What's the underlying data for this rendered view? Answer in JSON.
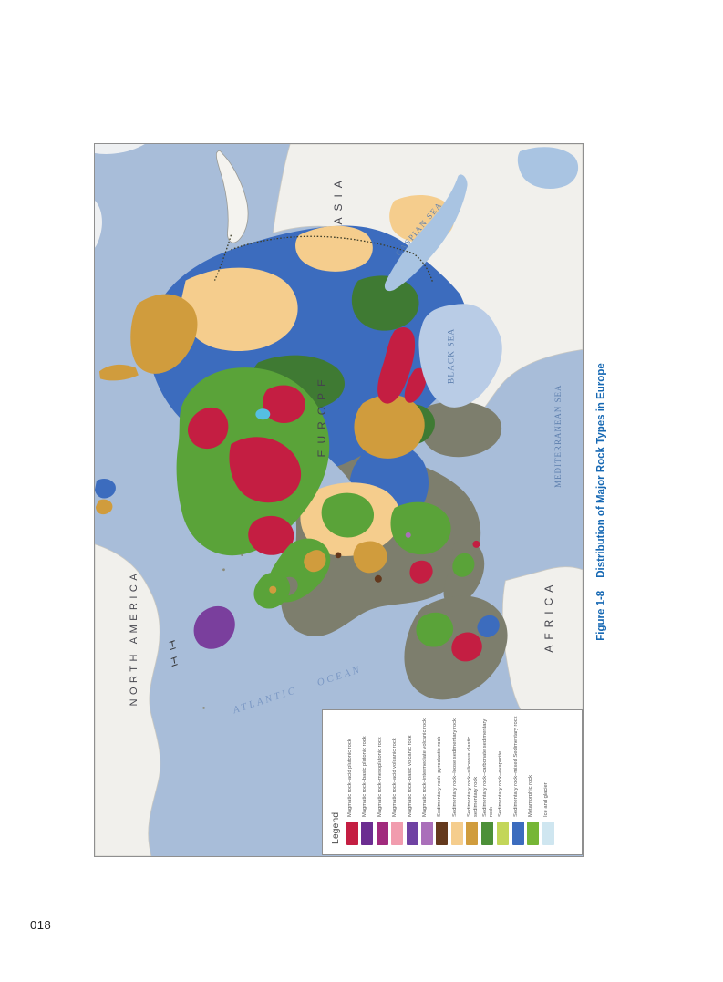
{
  "page": {
    "number": "018"
  },
  "figure": {
    "label": "Figure 1-8",
    "title": "Distribution of Major Rock Types in Europe",
    "title_color": "#1668b3"
  },
  "map": {
    "labels": {
      "asia": "ASIA",
      "europe": "EUROPE",
      "africa": "AFRICA",
      "north_america": "NORTH AMERICA",
      "atlantic_ocean": "ATLANTIC OCEAN",
      "caspian_sea": "CASPIAN SEA",
      "black_sea": "BLACK SEA",
      "mediterranean_sea": "MEDITERRANEAN SEA"
    },
    "colors": {
      "ocean": "#a8bdd9",
      "inland_sea": "#b9cce6",
      "caspian_sea": "#a9c4e2",
      "land_neutral": "#f1f0ec",
      "continent_label": "#45454d",
      "sea_label": "#5d7fae"
    }
  },
  "legend": {
    "title": "Legend",
    "items": [
      {
        "label": "Magmatic rock–acid plutonic rock",
        "color": "#c41e42"
      },
      {
        "label": "Magmatic rock–basic plutonic rock",
        "color": "#6c2d91"
      },
      {
        "label": "Magmatic rock–mesoplutonic rock",
        "color": "#a12a7d"
      },
      {
        "label": "Magmatic rock–acid volcanic rock",
        "color": "#f19cae"
      },
      {
        "label": "Magmatic rock–basic volcanic rock",
        "color": "#6f42a3"
      },
      {
        "label": "Magmatic rock–intermediate volcanic rock",
        "color": "#aa6fba"
      },
      {
        "label": "Sedimentary rock–pyroclastic rock",
        "color": "#64391d"
      },
      {
        "label": "Sedimentary rock–loose sedimentary rock",
        "color": "#f5cd8d"
      },
      {
        "label": "Sedimentary rock–siliceous clastic sedimentary rock",
        "color": "#d09c3d"
      },
      {
        "label": "Sedimentary rock–carbonate sedimentary rock",
        "color": "#4d9038"
      },
      {
        "label": "Sedimentary rock–evaporite",
        "color": "#c3d659"
      },
      {
        "label": "Sedimentary rock–mixed Sedimentary rock",
        "color": "#3c6cbe"
      },
      {
        "label": "Metamorphic rock",
        "color": "#76b636"
      },
      {
        "label": "Ice and glacier",
        "color": "#cfe6f0"
      }
    ]
  }
}
